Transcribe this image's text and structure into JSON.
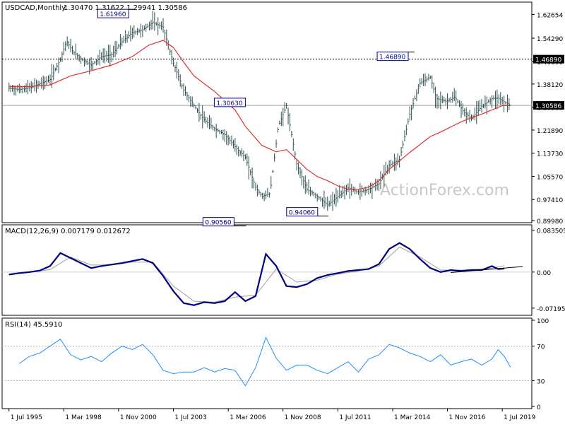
{
  "colors": {
    "price_bars": "#2f4f4f",
    "sma": "#e0302e",
    "macd_line": "#000080",
    "macd_signal": "#a0a0a0",
    "rsi_line": "#1e90ff",
    "grid": "#000000",
    "price_tag_bg": "#000000",
    "price_tag_text": "#ffffff"
  },
  "header": {
    "symbol_info": "USDCAD,Monthly",
    "ohlc": "1.30470 1.31622 1.29941 1.30586"
  },
  "watermark": "ActionForex.com",
  "x_axis": {
    "tick_labels": [
      "1 Jul 1995",
      "1 Mar 1998",
      "1 Nov 2000",
      "1 Jul 2003",
      "1 Mar 2006",
      "1 Nov 2008",
      "1 Jul 2011",
      "1 Mar 2014",
      "1 Nov 2016",
      "1 Jul 2019"
    ],
    "tick_values": [
      1995.5,
      1998.17,
      2000.83,
      2003.5,
      2006.17,
      2008.83,
      2011.5,
      2014.17,
      2016.83,
      2019.5
    ]
  },
  "chart_data": [
    {
      "type": "line",
      "panel": "price",
      "ylim": [
        0.8998,
        1.6624
      ],
      "y_ticks": [
        "1.62654",
        "1.54290",
        "1.46090",
        "1.38120",
        "1.29960",
        "1.21890",
        "1.13730",
        "1.05570",
        "0.97410",
        "0.89980"
      ],
      "y_tick_values": [
        1.62654,
        1.5429,
        1.4609,
        1.3812,
        1.2996,
        1.2189,
        1.1373,
        1.0557,
        0.9741,
        0.8998
      ],
      "current_price_label": "1.30586",
      "current_price": 1.30586,
      "resistance_label": "1.46890",
      "resistance": 1.4689,
      "annotations": [
        {
          "label": "1.61960",
          "x": 2002.0,
          "y": 1.6196
        },
        {
          "label": "1.30630",
          "x": 2007.5,
          "y": 1.3063
        },
        {
          "label": "0.90560",
          "x": 2007.0,
          "y": 0.9056
        },
        {
          "label": "0.94060",
          "x": 2011.2,
          "y": 0.9406
        },
        {
          "label": "1.46890",
          "x": 2016.0,
          "y": 1.4689
        }
      ],
      "series": [
        {
          "name": "price",
          "x": [
            1995.5,
            1996.0,
            1996.5,
            1997.0,
            1997.5,
            1998.0,
            1998.3,
            1998.6,
            1999.0,
            1999.5,
            2000.0,
            2000.5,
            2001.0,
            2001.5,
            2002.0,
            2002.5,
            2003.0,
            2003.5,
            2004.0,
            2004.5,
            2005.0,
            2005.5,
            2006.0,
            2006.5,
            2007.0,
            2007.5,
            2007.8,
            2008.2,
            2008.6,
            2009.0,
            2009.5,
            2010.0,
            2010.5,
            2011.0,
            2011.5,
            2012.0,
            2012.5,
            2013.0,
            2013.5,
            2014.0,
            2014.5,
            2015.0,
            2015.5,
            2016.0,
            2016.3,
            2016.8,
            2017.2,
            2017.6,
            2018.0,
            2018.5,
            2019.0,
            2019.3,
            2019.6,
            2019.9
          ],
          "values": [
            1.366,
            1.362,
            1.368,
            1.382,
            1.397,
            1.468,
            1.532,
            1.497,
            1.47,
            1.448,
            1.478,
            1.485,
            1.53,
            1.562,
            1.572,
            1.598,
            1.582,
            1.455,
            1.36,
            1.305,
            1.255,
            1.224,
            1.203,
            1.16,
            1.123,
            1.018,
            0.985,
            0.995,
            1.23,
            1.305,
            1.1,
            1.01,
            0.985,
            0.955,
            0.984,
            1.015,
            1.0,
            1.01,
            1.03,
            1.095,
            1.115,
            1.275,
            1.385,
            1.405,
            1.33,
            1.32,
            1.335,
            1.285,
            1.26,
            1.302,
            1.33,
            1.332,
            1.318,
            1.306
          ]
        },
        {
          "name": "sma",
          "x": [
            1995.5,
            1996.5,
            1997.5,
            1998.5,
            1999.5,
            2000.5,
            2001.5,
            2002.3,
            2003.0,
            2003.5,
            2004.0,
            2004.5,
            2005.5,
            2006.5,
            2007.0,
            2007.8,
            2008.5,
            2009.0,
            2009.5,
            2010.0,
            2010.5,
            2011.0,
            2011.5,
            2012.0,
            2012.5,
            2013.0,
            2013.5,
            2014.0,
            2014.5,
            2015.0,
            2015.5,
            2016.0,
            2016.5,
            2017.0,
            2017.5,
            2018.0,
            2018.5,
            2019.0,
            2019.5,
            2019.9
          ],
          "values": [
            1.372,
            1.372,
            1.378,
            1.41,
            1.428,
            1.448,
            1.478,
            1.518,
            1.535,
            1.51,
            1.458,
            1.41,
            1.355,
            1.29,
            1.232,
            1.165,
            1.142,
            1.15,
            1.115,
            1.08,
            1.055,
            1.04,
            1.022,
            1.01,
            1.01,
            1.018,
            1.04,
            1.08,
            1.11,
            1.14,
            1.168,
            1.196,
            1.212,
            1.23,
            1.248,
            1.262,
            1.275,
            1.29,
            1.305,
            1.305
          ]
        }
      ]
    },
    {
      "type": "line",
      "panel": "macd",
      "title": "MACD(12,26,9) 0.007179 0.012672",
      "ylim": [
        -0.082,
        0.09
      ],
      "y_ticks": [
        "0.083505",
        "0.00",
        "-0.07195"
      ],
      "y_tick_values": [
        0.083505,
        0.0,
        -0.07195
      ],
      "series": [
        {
          "name": "macd",
          "x": [
            1995.5,
            1996.0,
            1996.5,
            1997.0,
            1997.5,
            1998.0,
            1998.5,
            1999.0,
            1999.5,
            2000.0,
            2000.5,
            2001.0,
            2001.5,
            2002.0,
            2002.5,
            2003.0,
            2003.5,
            2004.0,
            2004.5,
            2005.0,
            2005.5,
            2006.0,
            2006.5,
            2007.0,
            2007.5,
            2008.0,
            2008.5,
            2009.0,
            2009.5,
            2010.0,
            2010.5,
            2011.0,
            2011.5,
            2012.0,
            2012.5,
            2013.0,
            2013.5,
            2014.0,
            2014.5,
            2015.0,
            2015.5,
            2016.0,
            2016.5,
            2017.0,
            2017.5,
            2018.0,
            2018.5,
            2019.0,
            2019.3,
            2019.6
          ],
          "values": [
            -0.005,
            -0.002,
            0.0,
            0.003,
            0.012,
            0.038,
            0.028,
            0.018,
            0.008,
            0.012,
            0.015,
            0.018,
            0.022,
            0.026,
            0.018,
            -0.008,
            -0.038,
            -0.062,
            -0.066,
            -0.06,
            -0.062,
            -0.058,
            -0.04,
            -0.058,
            -0.048,
            0.036,
            0.012,
            -0.028,
            -0.03,
            -0.024,
            -0.012,
            -0.006,
            -0.002,
            0.002,
            0.004,
            0.006,
            0.016,
            0.046,
            0.058,
            0.046,
            0.026,
            0.008,
            0.0,
            0.004,
            0.002,
            0.004,
            0.004,
            0.012,
            0.006,
            0.007
          ]
        },
        {
          "name": "signal",
          "x": [
            1995.5,
            1996.5,
            1997.5,
            1998.5,
            1999.5,
            2000.5,
            2001.5,
            2002.5,
            2003.5,
            2004.5,
            2005.5,
            2006.5,
            2007.5,
            2008.5,
            2009.5,
            2010.5,
            2011.5,
            2012.5,
            2013.5,
            2014.5,
            2015.5,
            2016.5,
            2017.5,
            2018.5,
            2019.0,
            2019.6
          ],
          "values": [
            -0.004,
            -0.001,
            0.005,
            0.03,
            0.014,
            0.014,
            0.02,
            0.02,
            -0.028,
            -0.058,
            -0.06,
            -0.05,
            -0.046,
            0.006,
            -0.02,
            -0.016,
            -0.004,
            0.002,
            0.012,
            0.05,
            0.03,
            0.004,
            0.004,
            0.006,
            0.008,
            0.0127
          ]
        },
        {
          "name": "trendline",
          "x": [
            2017.0,
            2020.5
          ],
          "values": [
            -0.001,
            0.011
          ]
        }
      ]
    },
    {
      "type": "line",
      "panel": "rsi",
      "title": "RSI(14) 45.5910",
      "ylim": [
        0,
        100
      ],
      "y_ticks": [
        "100",
        "70",
        "30",
        "0"
      ],
      "y_tick_values": [
        100,
        70,
        30,
        0
      ],
      "series": [
        {
          "name": "rsi",
          "x": [
            1996.0,
            1996.5,
            1997.0,
            1997.5,
            1998.0,
            1998.5,
            1999.0,
            1999.5,
            2000.0,
            2000.5,
            2001.0,
            2001.5,
            2002.0,
            2002.5,
            2003.0,
            2003.5,
            2004.0,
            2004.5,
            2005.0,
            2005.5,
            2006.0,
            2006.5,
            2007.0,
            2007.5,
            2008.0,
            2008.5,
            2009.0,
            2009.5,
            2010.0,
            2010.5,
            2011.0,
            2011.5,
            2012.0,
            2012.5,
            2013.0,
            2013.5,
            2014.0,
            2014.5,
            2015.0,
            2015.5,
            2016.0,
            2016.5,
            2017.0,
            2017.5,
            2018.0,
            2018.5,
            2019.0,
            2019.3,
            2019.6,
            2019.9
          ],
          "values": [
            50,
            58,
            62,
            70,
            78,
            60,
            54,
            58,
            52,
            62,
            70,
            66,
            72,
            60,
            42,
            38,
            40,
            40,
            45,
            40,
            44,
            42,
            24,
            45,
            80,
            56,
            42,
            48,
            48,
            42,
            38,
            45,
            52,
            40,
            55,
            60,
            72,
            68,
            62,
            58,
            52,
            60,
            48,
            52,
            55,
            48,
            55,
            66,
            58,
            45.6
          ]
        }
      ]
    }
  ]
}
